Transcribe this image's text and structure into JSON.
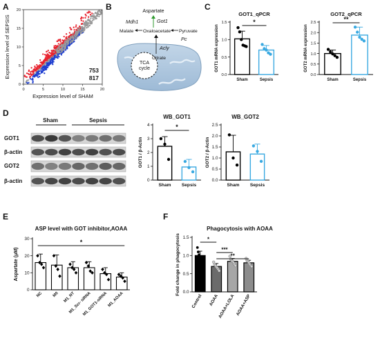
{
  "panels": {
    "A": {
      "letter": "A",
      "chart_data": {
        "type": "scatter",
        "xlabel": "Expression level of SHAM",
        "ylabel": "Expression level of SEPSIS",
        "x_ticks": [
          0,
          5,
          10,
          15,
          20
        ],
        "y_ticks": [
          0,
          5,
          10,
          15,
          20
        ],
        "xlim": [
          0,
          20
        ],
        "ylim": [
          0,
          20
        ],
        "series": [
          {
            "name": "",
            "color": "#e8212d",
            "count_label": "753"
          },
          {
            "name": "",
            "color": "#1f3fd1",
            "count_label": "817"
          },
          {
            "name": "",
            "color": "#9a9a9a"
          }
        ]
      }
    },
    "B": {
      "letter": "B",
      "labels": {
        "aspartate": "Aspartate",
        "got1": "Got1",
        "mdh1": "Mdh1",
        "malate": "Malate",
        "oxaloacetate": "Oxaloacetate",
        "pyruvate": "Pyruvate",
        "pc": "Pc",
        "acly": "Acly",
        "citrate": "Citrate",
        "tca": "TCA",
        "cycle": "cycle"
      },
      "colors": {
        "got1": "#2e9a2e",
        "mitochondrion": "#a9c4dc",
        "crista": "#cfdfee"
      }
    },
    "C": {
      "letter": "C",
      "chart_data": [
        {
          "type": "bar",
          "title": "GOT1_qPCR",
          "ylabel": "GOT1 mRNA expression",
          "categories": [
            "Sham",
            "Sepsis"
          ],
          "values": [
            1.02,
            0.7
          ],
          "errors": [
            0.22,
            0.13
          ],
          "ylim": [
            0,
            1.5
          ],
          "y_ticks": [
            "0.0",
            "0.5",
            "1.0",
            "1.5"
          ],
          "points": [
            [
              1.34,
              1.22,
              1.0,
              0.84,
              0.82,
              0.8
            ],
            [
              0.86,
              0.74,
              0.7,
              0.62,
              0.58
            ]
          ],
          "significance": "*",
          "colors": [
            "#000000",
            "#39a9e1"
          ]
        },
        {
          "type": "bar",
          "title": "GOT2_qPCR",
          "ylabel": "GOT2 mRNA expression",
          "categories": [
            "Sham",
            "Sepsis"
          ],
          "values": [
            1.0,
            1.88
          ],
          "errors": [
            0.17,
            0.38
          ],
          "ylim": [
            0,
            2.5
          ],
          "y_ticks": [
            "0.0",
            "0.5",
            "1.0",
            "1.5",
            "2.0",
            "2.5"
          ],
          "points": [
            [
              1.2,
              1.08,
              0.98,
              0.9,
              0.82
            ],
            [
              2.26,
              2.02,
              1.78,
              1.68,
              1.6
            ]
          ],
          "significance": "**",
          "colors": [
            "#000000",
            "#39a9e1"
          ]
        }
      ]
    },
    "D": {
      "letter": "D",
      "blot": {
        "groups": [
          "Sham",
          "Sepsis"
        ],
        "rows": [
          "GOT1",
          "β-actin",
          "GOT2",
          "β-actin"
        ],
        "lane_count": 7
      },
      "chart_data": [
        {
          "type": "bar",
          "title": "WB_GOT1",
          "ylabel": "GOT1 / β-Actin",
          "categories": [
            "Sham",
            "Sepsis"
          ],
          "values": [
            2.45,
            0.95
          ],
          "errors": [
            0.7,
            0.55
          ],
          "ylim": [
            0,
            4
          ],
          "y_ticks": [
            "0",
            "1",
            "2",
            "3",
            "4"
          ],
          "points": [
            [
              3.0,
              2.6,
              1.5
            ],
            [
              1.35,
              0.9,
              0.6
            ]
          ],
          "significance": "*",
          "colors": [
            "#000000",
            "#39a9e1"
          ]
        },
        {
          "type": "bar",
          "title": "WB_GOT2",
          "ylabel": "GOT2 / β-Actin",
          "categories": [
            "Sham",
            "Sepsis"
          ],
          "values": [
            1.28,
            1.18
          ],
          "errors": [
            0.75,
            0.45
          ],
          "ylim": [
            0,
            2.5
          ],
          "y_ticks": [
            "0.0",
            "0.5",
            "1.0",
            "1.5",
            "2.0",
            "2.5"
          ],
          "points": [
            [
              2.05,
              1.0,
              0.68
            ],
            [
              1.55,
              1.3,
              0.85
            ]
          ],
          "significance": "",
          "colors": [
            "#000000",
            "#39a9e1"
          ]
        }
      ]
    },
    "E": {
      "letter": "E",
      "chart_data": {
        "type": "bar",
        "title": "ASP level with GOT inhibitor,AOAA",
        "ylabel": "Aspartate (μM)",
        "categories": [
          "NC",
          "M0",
          "M1_NT",
          "M1_Scr- siRNA",
          "M1_GOT1-siRNA",
          "M1_AOAA"
        ],
        "values": [
          16,
          14.5,
          13,
          13,
          9.5,
          7.5
        ],
        "errors": [
          5,
          6,
          3.5,
          3.5,
          3.5,
          2.5
        ],
        "ylim": [
          0,
          30
        ],
        "y_ticks": [
          "0",
          "10",
          "20",
          "30"
        ],
        "points": [
          [
            20,
            16,
            15,
            13
          ],
          [
            20,
            14,
            12,
            8
          ],
          [
            15,
            13,
            12,
            10
          ],
          [
            16,
            14,
            11,
            10
          ],
          [
            12,
            10,
            9,
            6
          ],
          [
            9,
            8,
            7,
            5
          ]
        ],
        "significance": "*",
        "colors": [
          "#000000",
          "#000000",
          "#000000",
          "#000000",
          "#000000",
          "#000000"
        ]
      }
    },
    "F": {
      "letter": "F",
      "chart_data": {
        "type": "bar",
        "title": "Phagocytosis with  AOAA",
        "ylabel": "Fold change in phagocytosis",
        "categories": [
          "Control",
          "AOAA",
          "AOAA+LOLA",
          "AOAA+ASP"
        ],
        "values": [
          1.0,
          0.7,
          0.84,
          0.8
        ],
        "errors": [
          0.12,
          0.08,
          0.08,
          0.07
        ],
        "ylim": [
          0,
          1.5
        ],
        "y_ticks": [
          "0.0",
          "0.5",
          "1.0",
          "1.5"
        ],
        "points": [
          [
            1.22,
            1.1,
            1.02,
            0.98,
            0.95,
            0.92,
            0.88,
            0.82
          ],
          [
            0.82,
            0.76,
            0.72,
            0.68,
            0.66,
            0.62,
            0.58
          ],
          [
            0.98,
            0.9,
            0.86,
            0.84,
            0.8,
            0.76,
            0.72
          ],
          [
            0.92,
            0.86,
            0.84,
            0.8,
            0.76,
            0.72,
            0.7
          ]
        ],
        "significance_pairs": [
          {
            "from": 0,
            "to": 1,
            "label": "*"
          },
          {
            "from": 1,
            "to": 2,
            "label": "***"
          },
          {
            "from": 1,
            "to": 3,
            "label": "**"
          }
        ],
        "fill_colors": [
          "#000000",
          "#6b6b6b",
          "#a6a6a6",
          "#8c8c8c"
        ]
      }
    }
  }
}
